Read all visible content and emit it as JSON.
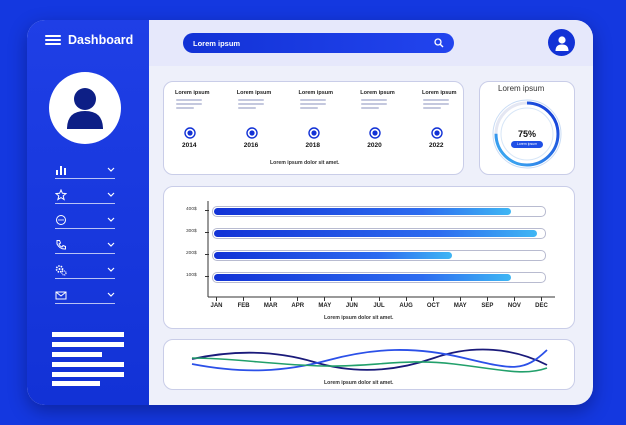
{
  "app": {
    "title": "Dashboard"
  },
  "search": {
    "text": "Lorem ipsum"
  },
  "sidebar": {
    "items": [
      {
        "icon": "bar-chart-icon"
      },
      {
        "icon": "star-icon"
      },
      {
        "icon": "chat-icon"
      },
      {
        "icon": "phone-icon"
      },
      {
        "icon": "settings-icon"
      },
      {
        "icon": "mail-icon"
      }
    ]
  },
  "timeline": {
    "milestones": [
      {
        "label": "Lorem ipsum",
        "year": "2014"
      },
      {
        "label": "Lorem ipsum",
        "year": "2016"
      },
      {
        "label": "Lorem ipsum",
        "year": "2018"
      },
      {
        "label": "Lorem ipsum",
        "year": "2020"
      },
      {
        "label": "Lorem ipsum",
        "year": "2022"
      }
    ],
    "caption": "Lorem ipsum dolor sit amet."
  },
  "gauge": {
    "title": "Lorem ipsum",
    "value_text": "75%",
    "value": 75,
    "button": "Lorem ipsum"
  },
  "chart_data": {
    "type": "bar",
    "orientation": "horizontal",
    "categories": [
      "400$",
      "300$",
      "200$",
      "100$"
    ],
    "values": [
      0.9,
      0.98,
      0.72,
      0.9
    ],
    "x_tick_labels": [
      "JAN",
      "FEB",
      "MAR",
      "APR",
      "MAY",
      "JUN",
      "JUL",
      "AUG",
      "OCT",
      "MAY",
      "SEP",
      "NOV",
      "DEC"
    ],
    "caption": "Lorem ipsum dolor sit amet."
  },
  "wave": {
    "caption": "Lorem ipsum dolor sit amet."
  },
  "colors": {
    "primary": "#1232d6",
    "background": "#1438e0",
    "accent": "#3fb6f4",
    "wave_green": "#1fa86b"
  }
}
